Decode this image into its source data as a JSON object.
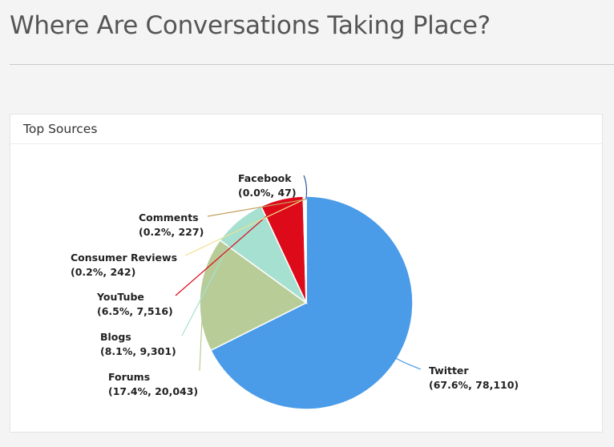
{
  "page": {
    "title": "Where Are Conversations Taking Place?"
  },
  "card": {
    "title": "Top Sources"
  },
  "chart_data": {
    "type": "pie",
    "title": "Top Sources",
    "slices": [
      {
        "name": "Twitter",
        "percent": "67.6%",
        "value": 78110,
        "value_label": "78,110",
        "color": "#4a9be8"
      },
      {
        "name": "Forums",
        "percent": "17.4%",
        "value": 20043,
        "value_label": "20,043",
        "color": "#b8cc98"
      },
      {
        "name": "Blogs",
        "percent": "8.1%",
        "value": 9301,
        "value_label": "9,301",
        "color": "#a6e0d0"
      },
      {
        "name": "YouTube",
        "percent": "6.5%",
        "value": 7516,
        "value_label": "7,516",
        "color": "#dd0a1a"
      },
      {
        "name": "Consumer Reviews",
        "percent": "0.2%",
        "value": 242,
        "value_label": "242",
        "color": "#f0e08a"
      },
      {
        "name": "Comments",
        "percent": "0.2%",
        "value": 227,
        "value_label": "227",
        "color": "#c4a060"
      },
      {
        "name": "Facebook",
        "percent": "0.0%",
        "value": 47,
        "value_label": "47",
        "color": "#2a5a9c"
      }
    ],
    "legend": "none",
    "data_labels": "outside with leader lines"
  }
}
